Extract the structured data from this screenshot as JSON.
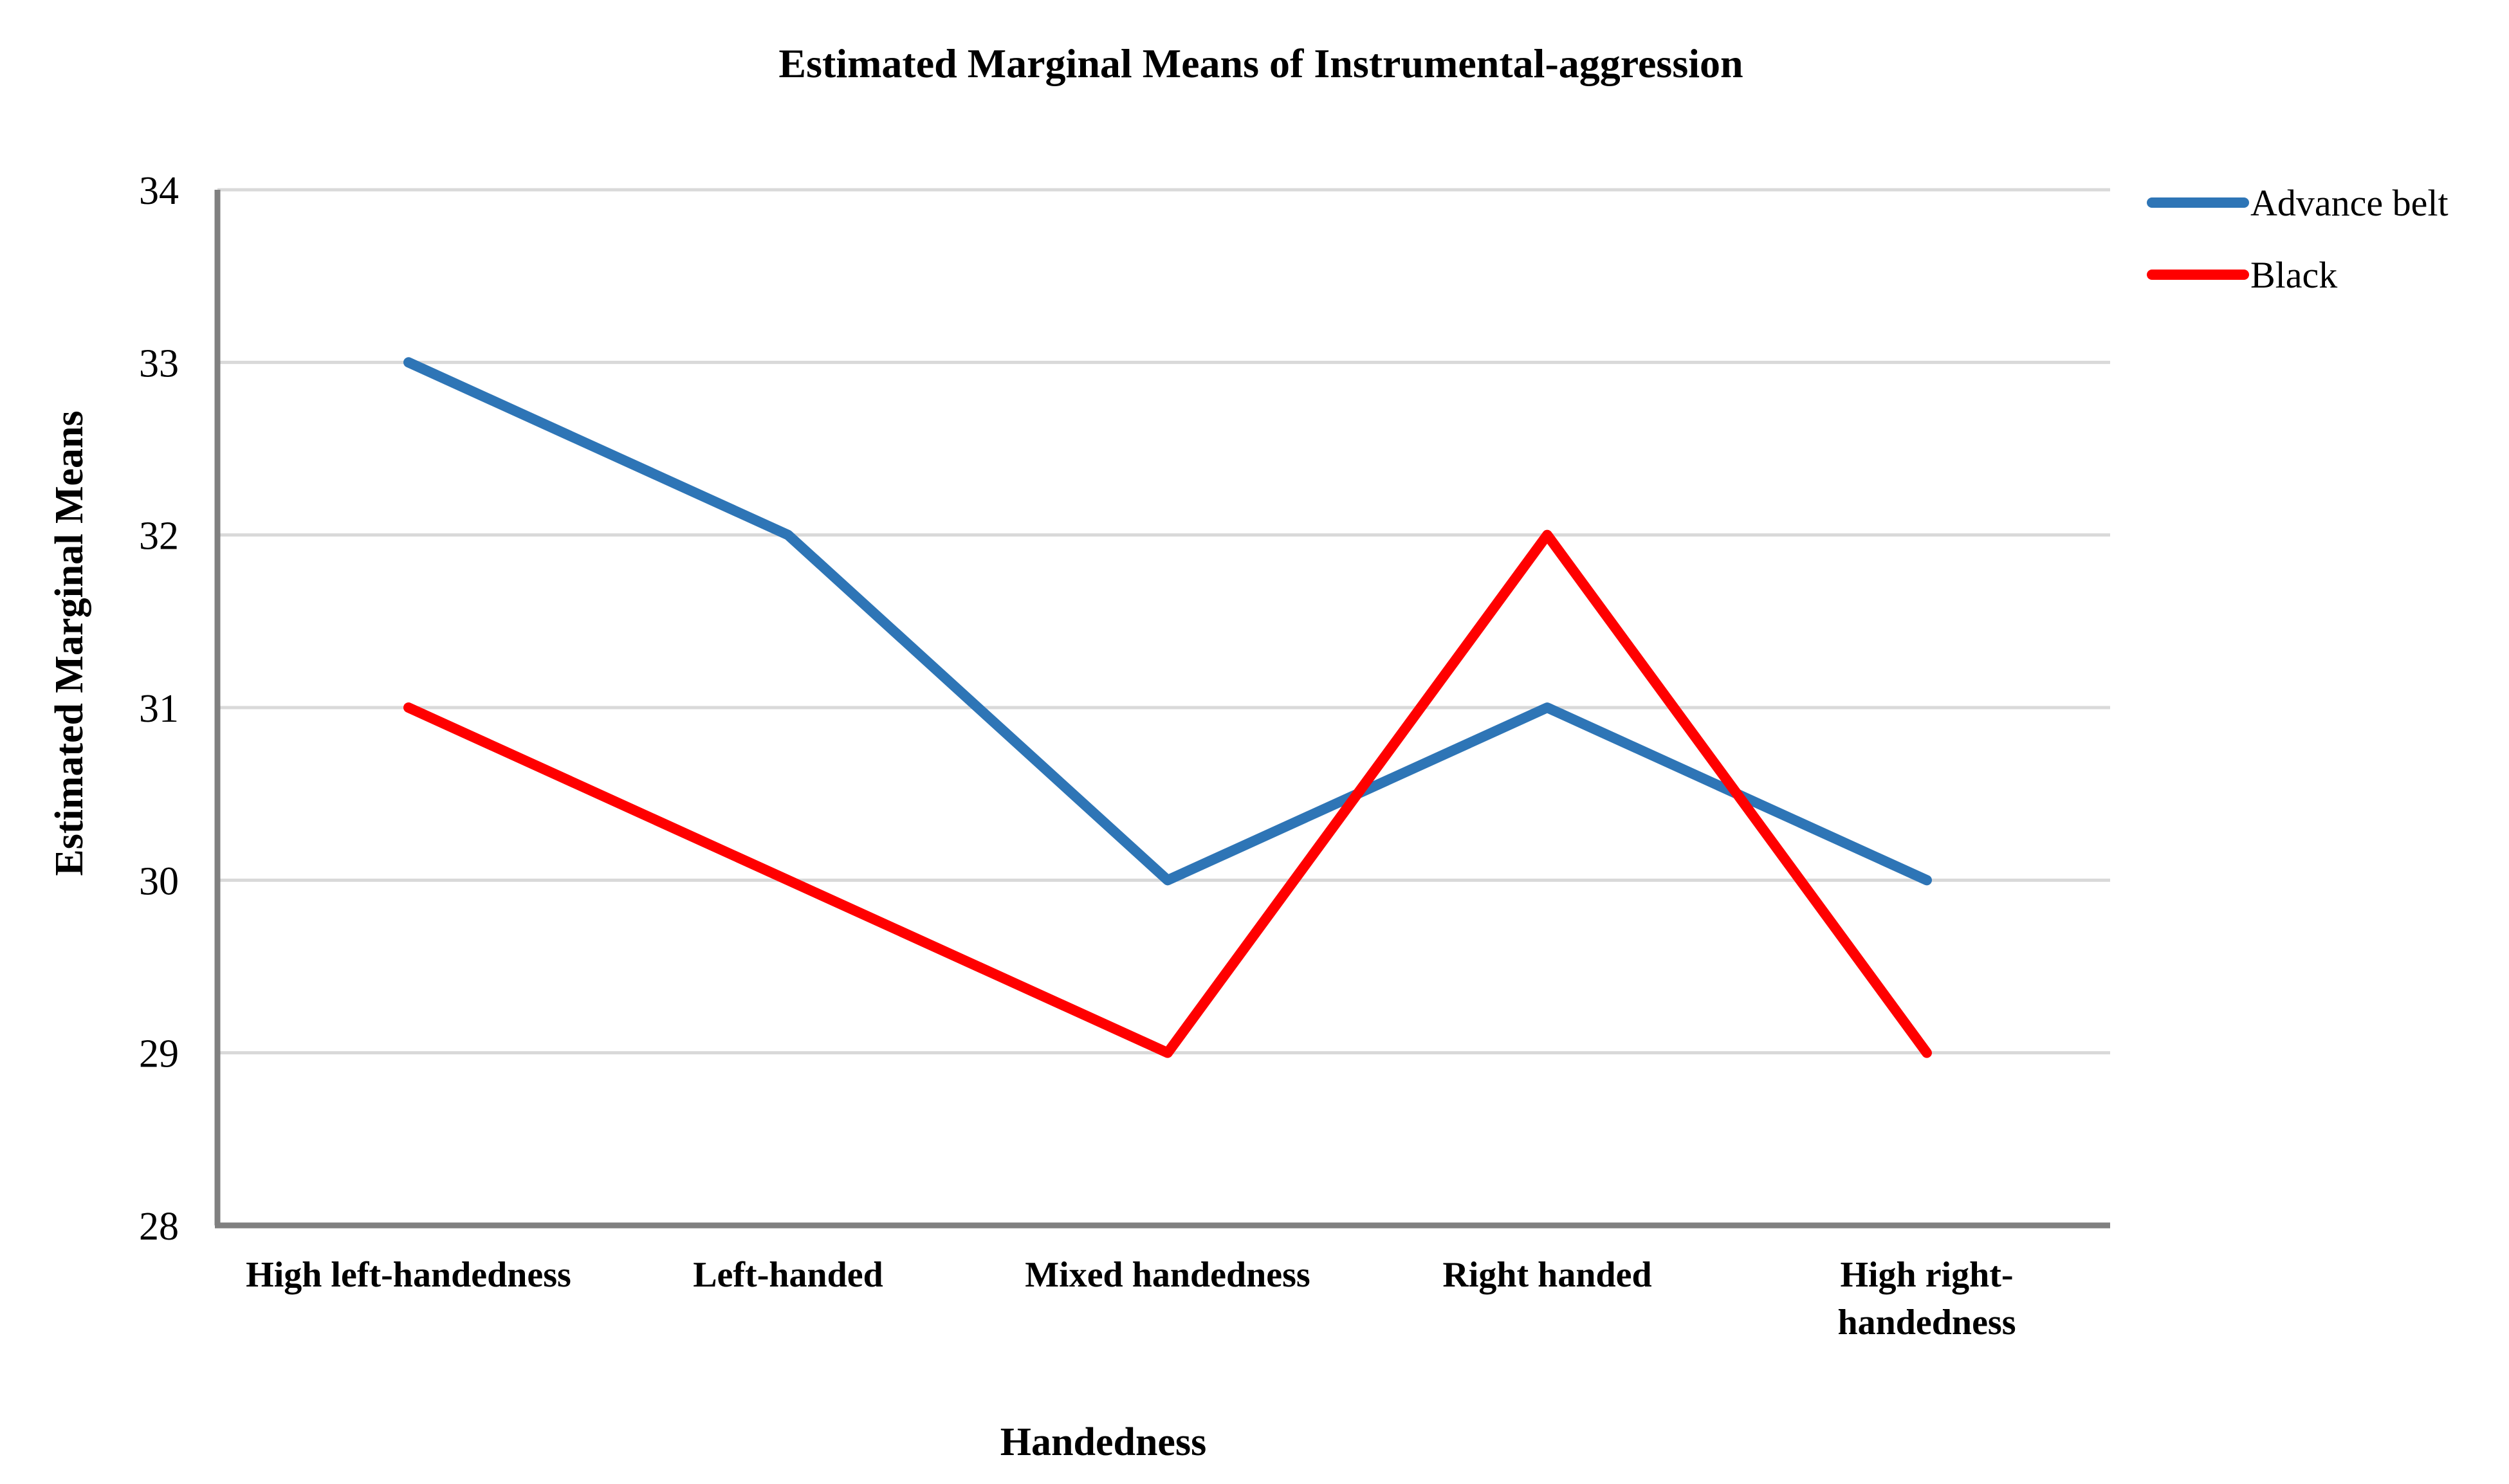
{
  "chart_data": {
    "type": "line",
    "title": "Estimated Marginal Means of Instrumental-aggression",
    "xlabel": "Handedness",
    "ylabel": "Estimated Marginal Means",
    "categories": [
      [
        "High left-handedness"
      ],
      [
        "Left-handed"
      ],
      [
        "Mixed handedness"
      ],
      [
        "Right handed"
      ],
      [
        "High right-",
        "handedness"
      ]
    ],
    "series": [
      {
        "name": "Advance belt",
        "color": "#2e75b6",
        "values": [
          33,
          32,
          30,
          31,
          30
        ]
      },
      {
        "name": "Black",
        "color": "#ff0000",
        "values": [
          31,
          30,
          29,
          32,
          29
        ]
      }
    ],
    "ylim": [
      28,
      34
    ],
    "yticks": [
      "28",
      "29",
      "30",
      "31",
      "32",
      "33",
      "34"
    ],
    "grid": true,
    "legend_position": "top-right"
  }
}
